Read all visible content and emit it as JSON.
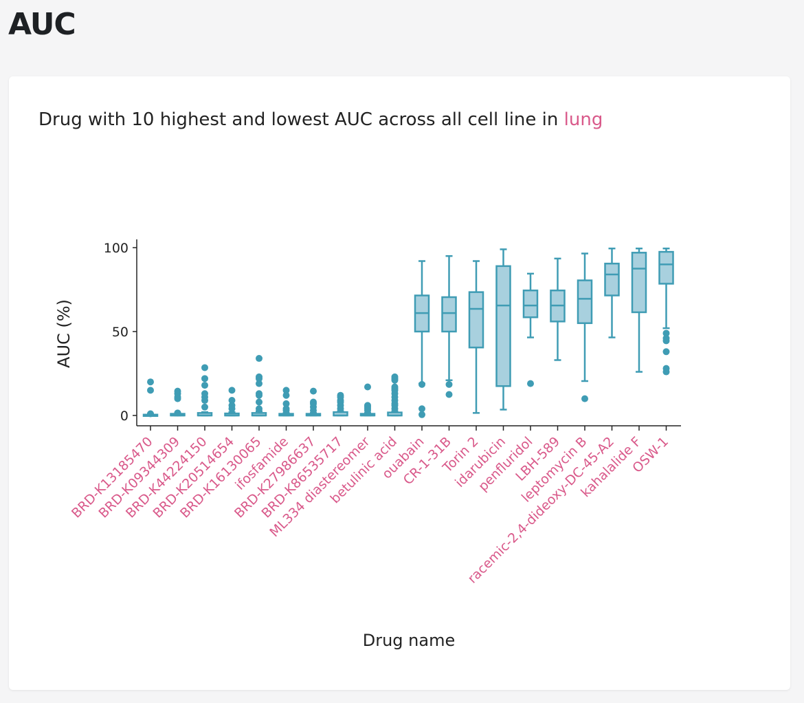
{
  "page": {
    "title": "AUC"
  },
  "card": {
    "heading_prefix": "Drug with 10 highest and lowest AUC across all cell line in ",
    "heading_accent": "lung"
  },
  "colors": {
    "accent": "#d9598a",
    "box_fill": "#a8d0de",
    "box_stroke": "#3f9cb4",
    "text": "#222222"
  },
  "chart_data": {
    "type": "box",
    "xlabel": "Drug name",
    "ylabel": "AUC (%)",
    "ylim": [
      -5,
      104
    ],
    "yticks": [
      0,
      50,
      100
    ],
    "categories": [
      "BRD-K13185470",
      "BRD-K09344309",
      "BRD-K44224150",
      "BRD-K20514654",
      "BRD-K16130065",
      "ifosfamide",
      "BRD-K27986637",
      "BRD-K86535717",
      "ML334 diastereomer",
      "betulinic acid",
      "ouabain",
      "CR-1-31B",
      "Torin 2",
      "idarubicin",
      "penfluridol",
      "LBH-589",
      "leptomycin B",
      "racemic-2,4-dideoxy-DC-45-A2",
      "kahalalide F",
      "OSW-1"
    ],
    "boxes": [
      {
        "min": 0,
        "q1": 0,
        "median": 0,
        "q3": 0.5,
        "max": 1,
        "outliers": [
          20,
          15,
          1
        ]
      },
      {
        "min": 0,
        "q1": 0,
        "median": 0,
        "q3": 1,
        "max": 1.5,
        "outliers": [
          14.5,
          13,
          11,
          10,
          1.5
        ]
      },
      {
        "min": 0,
        "q1": 0,
        "median": 0,
        "q3": 1.5,
        "max": 2,
        "outliers": [
          28.5,
          22,
          18,
          13,
          11,
          9,
          5
        ]
      },
      {
        "min": 0,
        "q1": 0,
        "median": 0,
        "q3": 1.2,
        "max": 2,
        "outliers": [
          15,
          9,
          6,
          4
        ]
      },
      {
        "min": 0,
        "q1": 0,
        "median": 0,
        "q3": 1.5,
        "max": 2.5,
        "outliers": [
          34,
          23,
          22,
          19,
          13,
          12,
          8,
          4
        ]
      },
      {
        "min": 0,
        "q1": 0,
        "median": 0,
        "q3": 1,
        "max": 1.5,
        "outliers": [
          15,
          12,
          7,
          4,
          3
        ]
      },
      {
        "min": 0,
        "q1": 0,
        "median": 0,
        "q3": 1,
        "max": 1.5,
        "outliers": [
          14.5,
          8,
          7,
          5,
          3
        ]
      },
      {
        "min": 0,
        "q1": 0,
        "median": 0,
        "q3": 2,
        "max": 2.5,
        "outliers": [
          12,
          11,
          9,
          8,
          6,
          4
        ]
      },
      {
        "min": 0,
        "q1": 0,
        "median": 0,
        "q3": 1,
        "max": 1.5,
        "outliers": [
          17,
          6,
          5,
          4,
          3
        ]
      },
      {
        "min": 0,
        "q1": 0,
        "median": 0,
        "q3": 1.8,
        "max": 2.5,
        "outliers": [
          23,
          22,
          21,
          17,
          16,
          15,
          13,
          11,
          9,
          7,
          6,
          4
        ]
      },
      {
        "min": 19,
        "q1": 50,
        "median": 61,
        "q3": 71.5,
        "max": 92,
        "outliers": [
          18.5,
          4,
          0.5
        ]
      },
      {
        "min": 21,
        "q1": 50,
        "median": 61,
        "q3": 70.5,
        "max": 95,
        "outliers": [
          18.5,
          12.5
        ]
      },
      {
        "min": 1.5,
        "q1": 40.5,
        "median": 63.5,
        "q3": 73.5,
        "max": 92,
        "outliers": []
      },
      {
        "min": 3.5,
        "q1": 17.5,
        "median": 65.5,
        "q3": 89,
        "max": 99,
        "outliers": []
      },
      {
        "min": 46.5,
        "q1": 58.5,
        "median": 65.5,
        "q3": 74.5,
        "max": 84.5,
        "outliers": [
          19
        ]
      },
      {
        "min": 33,
        "q1": 56,
        "median": 65.5,
        "q3": 74.5,
        "max": 93.5,
        "outliers": []
      },
      {
        "min": 20.5,
        "q1": 55,
        "median": 69.5,
        "q3": 80.5,
        "max": 96.5,
        "outliers": [
          10
        ]
      },
      {
        "min": 46.5,
        "q1": 71.5,
        "median": 84,
        "q3": 90.5,
        "max": 99.5,
        "outliers": []
      },
      {
        "min": 26,
        "q1": 61.5,
        "median": 87.5,
        "q3": 97,
        "max": 99.5,
        "outliers": []
      },
      {
        "min": 52,
        "q1": 78.5,
        "median": 90,
        "q3": 97.5,
        "max": 99.5,
        "outliers": [
          49,
          46,
          44.5,
          38,
          28,
          26
        ]
      }
    ]
  }
}
